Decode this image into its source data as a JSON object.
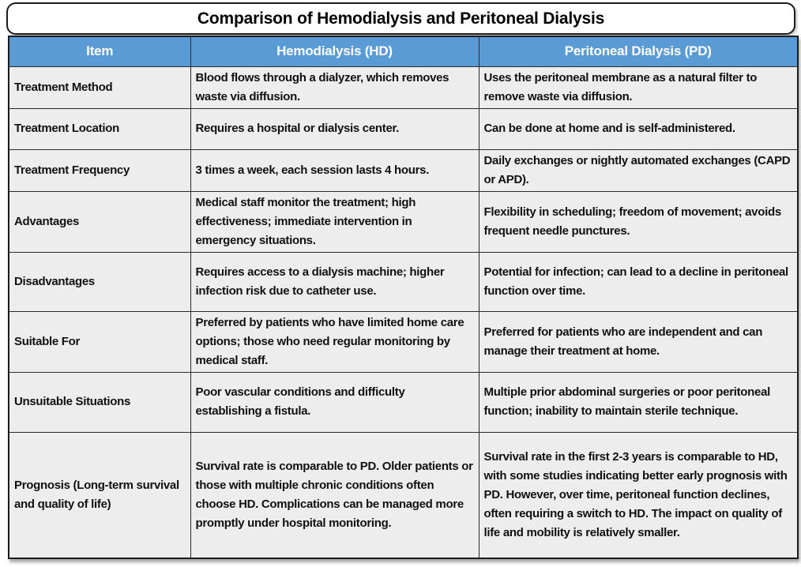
{
  "title": "Comparison of Hemodialysis and Peritoneal Dialysis",
  "table": {
    "headers": [
      "Item",
      "Hemodialysis (HD)",
      "Peritoneal Dialysis (PD)"
    ],
    "rows": [
      {
        "item": "Treatment Method",
        "hd": "Blood flows through a dialyzer, which removes waste via diffusion.",
        "pd": "Uses the peritoneal membrane as a natural filter to remove waste via diffusion."
      },
      {
        "item": "Treatment Location",
        "hd": "Requires a hospital or dialysis center.",
        "pd": "Can be done at home and is self-administered."
      },
      {
        "item": "Treatment Frequency",
        "hd": "3 times a week, each session lasts 4 hours.",
        "pd": "Daily exchanges or nightly automated exchanges (CAPD or APD)."
      },
      {
        "item": "Advantages",
        "hd": "Medical staff monitor the treatment; high effectiveness; immediate intervention in emergency situations.",
        "pd": "Flexibility in scheduling; freedom of movement; avoids frequent needle punctures."
      },
      {
        "item": "Disadvantages",
        "hd": "Requires access to a dialysis machine; higher infection risk due to catheter use.",
        "pd": "Potential for infection; can lead to a decline in peritoneal function over time."
      },
      {
        "item": "Suitable For",
        "hd": "Preferred by patients who have limited home care options; those who need regular monitoring by medical staff.",
        "pd": "Preferred for patients who are independent and can manage their treatment at home."
      },
      {
        "item": "Unsuitable Situations",
        "hd": "Poor vascular conditions and difficulty establishing a fistula.",
        "pd": "Multiple prior abdominal surgeries or poor peritoneal function; inability to maintain sterile technique."
      },
      {
        "item": "Prognosis (Long-term survival and quality of life)",
        "hd": "Survival rate is comparable to PD. Older patients or those with multiple chronic conditions often choose HD. Complications can be managed more promptly under hospital monitoring.",
        "pd": "Survival rate in the first 2-3 years is comparable to HD, with some studies indicating better early prognosis with PD. However, over time, peritoneal function declines, often requiring a switch to HD. The impact on quality of life and mobility is relatively smaller."
      }
    ]
  },
  "colors": {
    "header_bg": "#5B9BD5",
    "header_text": "#FFFFFF",
    "cell_bg": "#EDEDED",
    "border": "#2B2B2B",
    "title_text": "#000000"
  }
}
